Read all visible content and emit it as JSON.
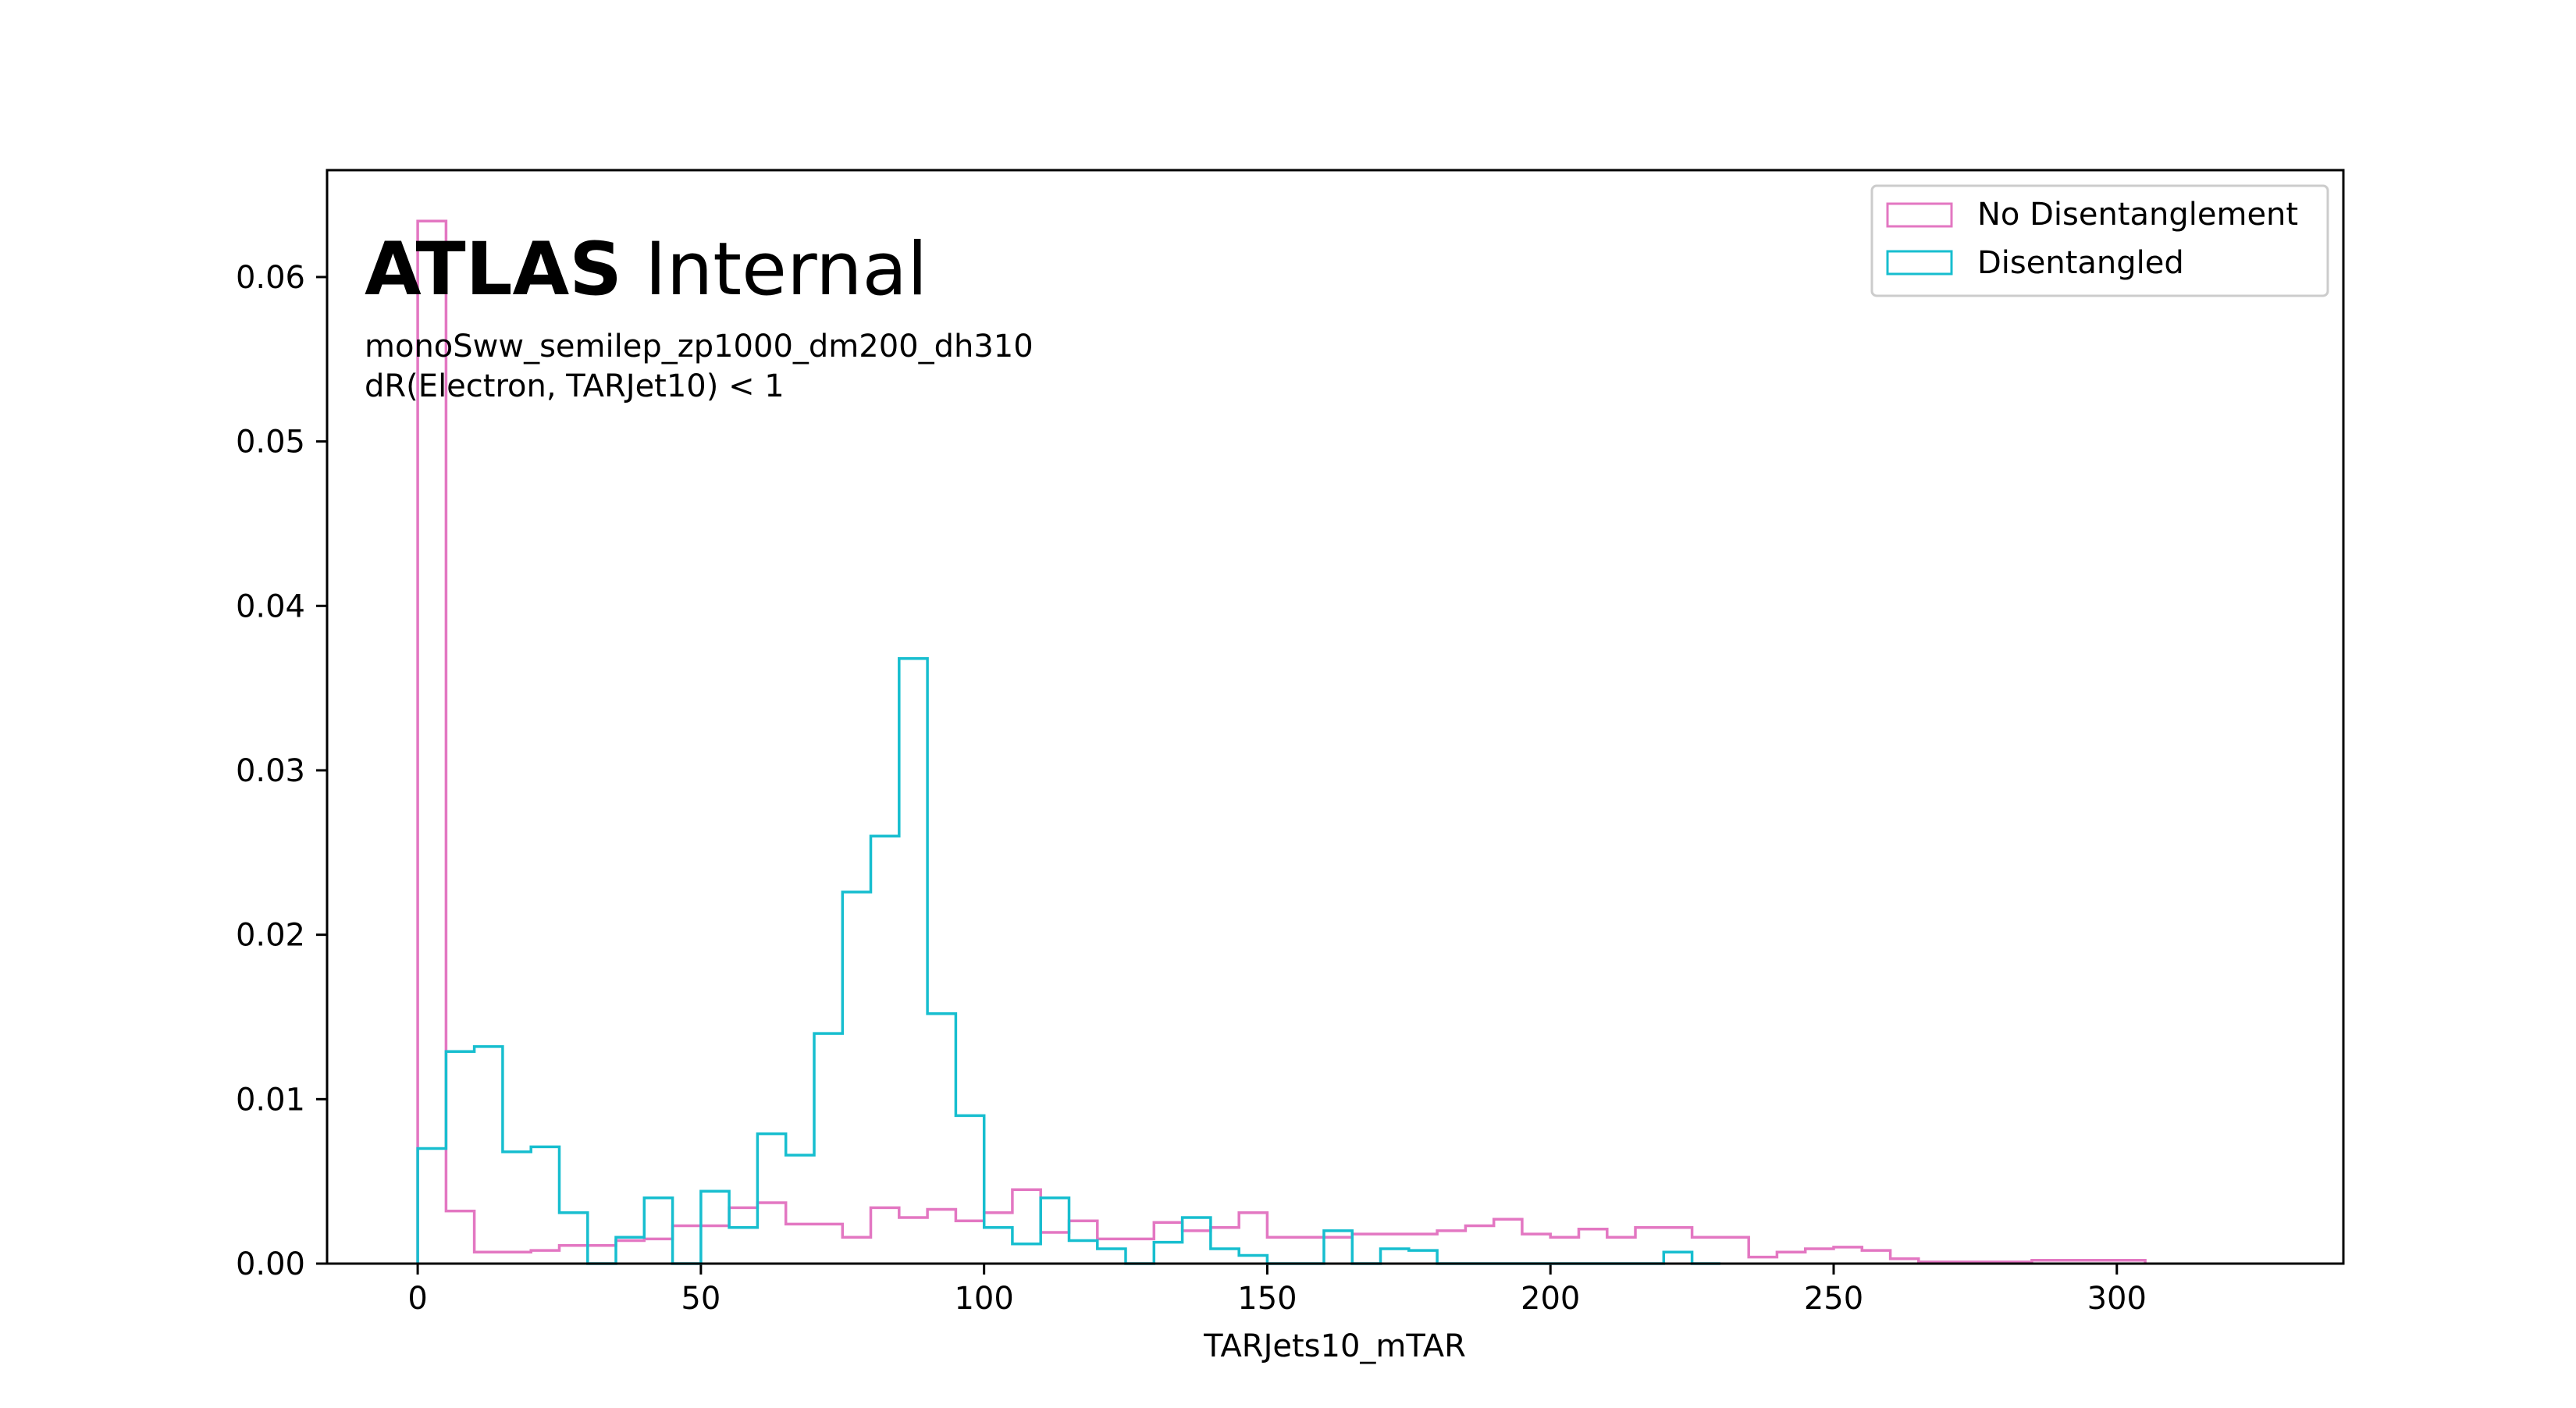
{
  "chart_data": {
    "type": "histogram",
    "title_bold": "ATLAS",
    "title_regular": "Internal",
    "annotations": [
      "monoSww_semilep_zp1000_dm200_dh310",
      "dR(Electron, TARJet10) < 1"
    ],
    "xlabel": "TARJets10_mTAR",
    "ylabel": "",
    "xlim": [
      -16,
      340
    ],
    "ylim": [
      0,
      0.0665
    ],
    "x_ticks": [
      0,
      50,
      100,
      150,
      200,
      250,
      300
    ],
    "x_tick_labels": [
      "0",
      "50",
      "100",
      "150",
      "200",
      "250",
      "300"
    ],
    "y_ticks": [
      0,
      0.01,
      0.02,
      0.03,
      0.04,
      0.05,
      0.06
    ],
    "y_tick_labels": [
      "0.00",
      "0.01",
      "0.02",
      "0.03",
      "0.04",
      "0.05",
      "0.06"
    ],
    "legend_position": "top-right",
    "bin_width": 5,
    "series": [
      {
        "name": "No Disentanglement",
        "color": "#e377c2",
        "start": 0,
        "values": [
          0.0634,
          0.0032,
          0.0007,
          0.0007,
          0.0008,
          0.0011,
          0.0011,
          0.0014,
          0.0015,
          0.0023,
          0.0023,
          0.0034,
          0.0037,
          0.0024,
          0.0024,
          0.0016,
          0.0034,
          0.0028,
          0.0033,
          0.0026,
          0.0031,
          0.0045,
          0.0019,
          0.0026,
          0.0015,
          0.0015,
          0.0025,
          0.002,
          0.0022,
          0.0031,
          0.0016,
          0.0016,
          0.0016,
          0.0018,
          0.0018,
          0.0018,
          0.002,
          0.0023,
          0.0027,
          0.0018,
          0.0016,
          0.0021,
          0.0016,
          0.0022,
          0.0022,
          0.0016,
          0.0016,
          0.0004,
          0.0007,
          0.0009,
          0.001,
          0.0008,
          0.0003,
          0.0001,
          0.0001,
          0.0001,
          0.0001,
          0.0002,
          0.0002,
          0.0002,
          0.0002
        ]
      },
      {
        "name": "Disentangled",
        "color": "#17becf",
        "start": 0,
        "values": [
          0.007,
          0.0129,
          0.0132,
          0.0068,
          0.0071,
          0.0031,
          0.0,
          0.0016,
          0.004,
          0.0,
          0.0044,
          0.0022,
          0.0079,
          0.0066,
          0.014,
          0.0226,
          0.026,
          0.0368,
          0.0152,
          0.009,
          0.0022,
          0.0012,
          0.004,
          0.0014,
          0.0009,
          0.0,
          0.0013,
          0.0028,
          0.0009,
          0.0005,
          0.0,
          0.0,
          0.002,
          0.0,
          0.0009,
          0.0008,
          0.0,
          0.0,
          0.0,
          0.0,
          0.0,
          0.0,
          0.0,
          0.0,
          0.0007,
          0.0
        ]
      }
    ]
  }
}
